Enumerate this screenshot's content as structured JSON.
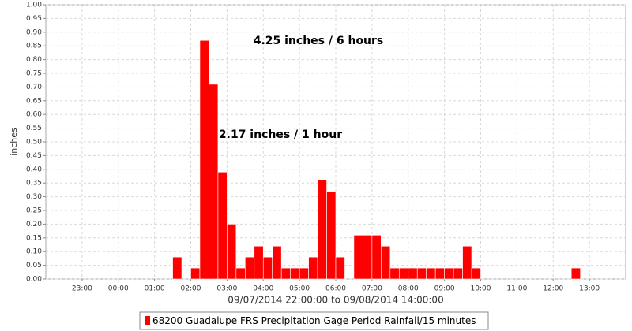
{
  "chart_data": {
    "type": "bar",
    "y_label": "inches",
    "x_label": "09/07/2014 22:00:00 to 09/08/2014 14:00:00",
    "annotations": [
      "4.25 inches / 6 hours",
      "2.17 inches / 1 hour"
    ],
    "x": [
      "01:30",
      "02:00",
      "02:15",
      "02:30",
      "02:45",
      "03:00",
      "03:15",
      "03:30",
      "03:45",
      "04:00",
      "04:15",
      "04:30",
      "04:45",
      "05:00",
      "05:15",
      "05:30",
      "05:45",
      "06:00",
      "06:30",
      "06:45",
      "07:00",
      "07:15",
      "07:30",
      "07:45",
      "08:00",
      "08:15",
      "08:30",
      "08:45",
      "09:00",
      "09:15",
      "09:30",
      "09:45",
      "12:30"
    ],
    "series": [
      {
        "name": "68200 Guadalupe FRS Precipitation Gage Period Rainfall/15 minutes",
        "color": "#ff0000",
        "values": [
          0.08,
          0.04,
          0.87,
          0.71,
          0.39,
          0.2,
          0.04,
          0.08,
          0.12,
          0.08,
          0.12,
          0.04,
          0.04,
          0.04,
          0.08,
          0.36,
          0.32,
          0.08,
          0.16,
          0.16,
          0.16,
          0.12,
          0.04,
          0.04,
          0.04,
          0.04,
          0.04,
          0.04,
          0.04,
          0.04,
          0.12,
          0.04,
          0.04
        ]
      }
    ],
    "xlim": [
      "22:00",
      "14:00"
    ],
    "xticks": [
      "23:00",
      "00:00",
      "01:00",
      "02:00",
      "03:00",
      "04:00",
      "05:00",
      "06:00",
      "07:00",
      "08:00",
      "09:00",
      "10:00",
      "11:00",
      "12:00",
      "13:00"
    ],
    "ylim": [
      0,
      1
    ],
    "yticks": [
      {
        "value": 0,
        "label": "0.00"
      },
      {
        "value": 0.05,
        "label": "0.05"
      },
      {
        "value": 0.1,
        "label": "0.10"
      },
      {
        "value": 0.15,
        "label": "0.15"
      },
      {
        "value": 0.2,
        "label": "0.20"
      },
      {
        "value": 0.25,
        "label": "0.25"
      },
      {
        "value": 0.3,
        "label": "0.30"
      },
      {
        "value": 0.35,
        "label": "0.35"
      },
      {
        "value": 0.4,
        "label": "0.40"
      },
      {
        "value": 0.45,
        "label": "0.45"
      },
      {
        "value": 0.5,
        "label": "0.50"
      },
      {
        "value": 0.55,
        "label": "0.55"
      },
      {
        "value": 0.6,
        "label": "0.60"
      },
      {
        "value": 0.65,
        "label": "0.65"
      },
      {
        "value": 0.7,
        "label": "0.70"
      },
      {
        "value": 0.75,
        "label": "0.75"
      },
      {
        "value": 0.8,
        "label": "0.80"
      },
      {
        "value": 0.85,
        "label": "0.85"
      },
      {
        "value": 0.9,
        "label": "0.90"
      },
      {
        "value": 0.95,
        "label": "0.95"
      },
      {
        "value": 1,
        "label": "1.00"
      }
    ],
    "grid": true
  }
}
